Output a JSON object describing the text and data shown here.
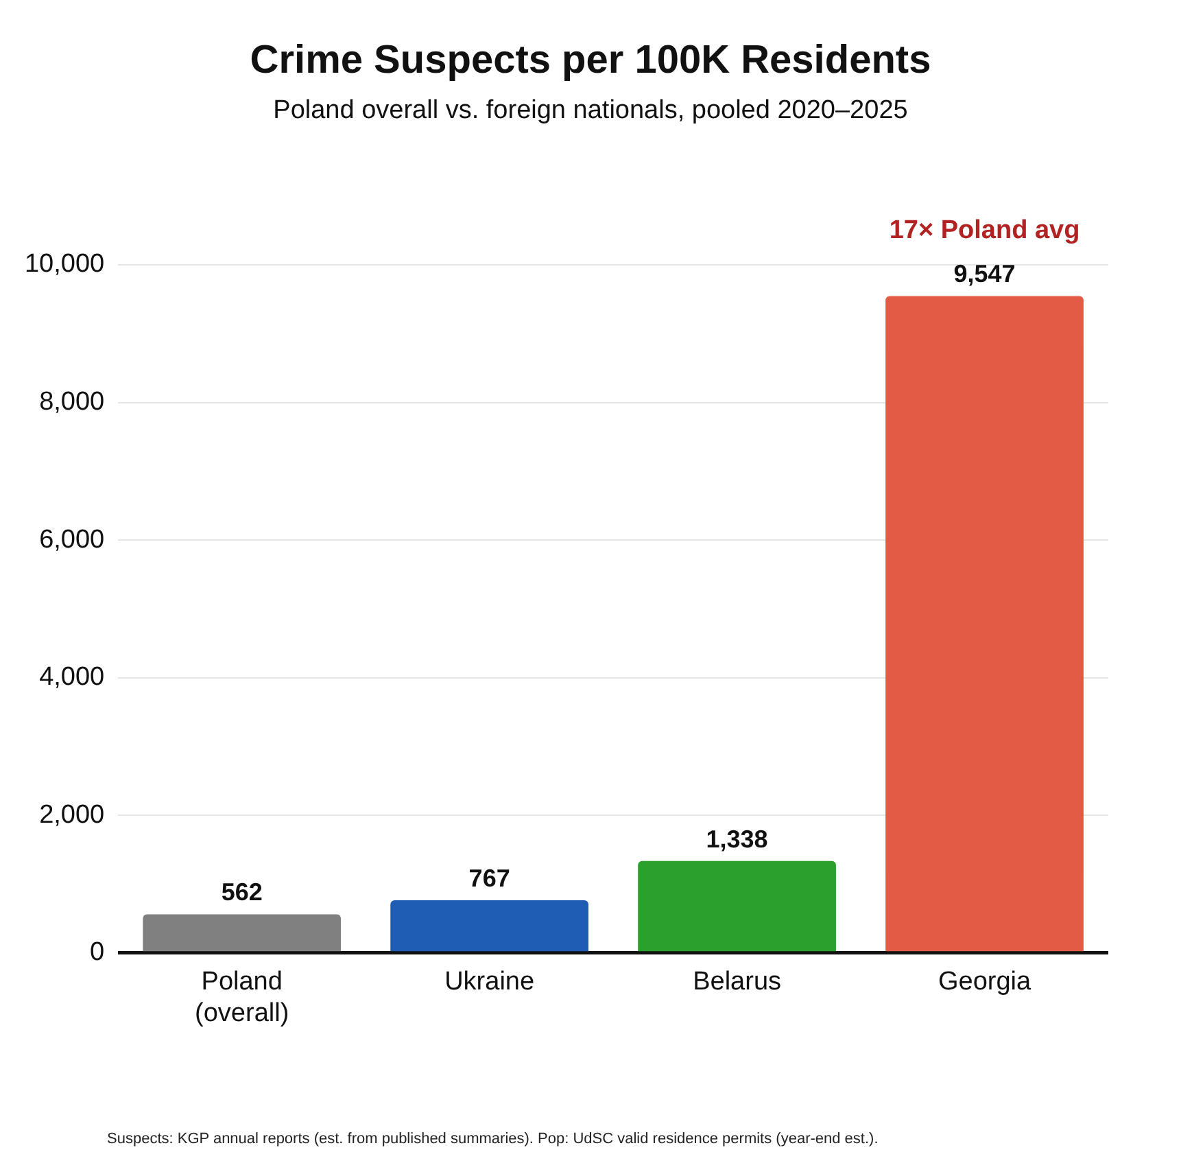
{
  "chart_data": {
    "type": "bar",
    "title": "Crime Suspects per 100K Residents",
    "subtitle": "Poland overall vs. foreign nationals, pooled 2020–2025",
    "categories": [
      "Poland\n(overall)",
      "Ukraine",
      "Belarus",
      "Georgia"
    ],
    "values": [
      562,
      767,
      1338,
      9547
    ],
    "colors": [
      "#808080",
      "#1f5db5",
      "#2ca02c",
      "#e35b45"
    ],
    "value_labels": [
      "562",
      "767",
      "1,338",
      "9,547"
    ],
    "ylim": [
      0,
      10000
    ],
    "yticks": [
      0,
      {
        "value": 2000,
        "label": "2,000"
      },
      {
        "value": 4000,
        "label": "4,000"
      },
      {
        "value": 6000,
        "label": "6,000"
      },
      {
        "value": 8000,
        "label": "8,000"
      },
      {
        "value": 10000,
        "label": "10,000"
      }
    ],
    "grid": "y",
    "legend": false,
    "annotations": [
      {
        "text": "17× Poland avg",
        "x": "Georgia",
        "y": 9547
      },
      "Suspects: KGP annual reports (est. from published summaries). Pop: UdSC valid residence permits (year-end est.)."
    ]
  }
}
